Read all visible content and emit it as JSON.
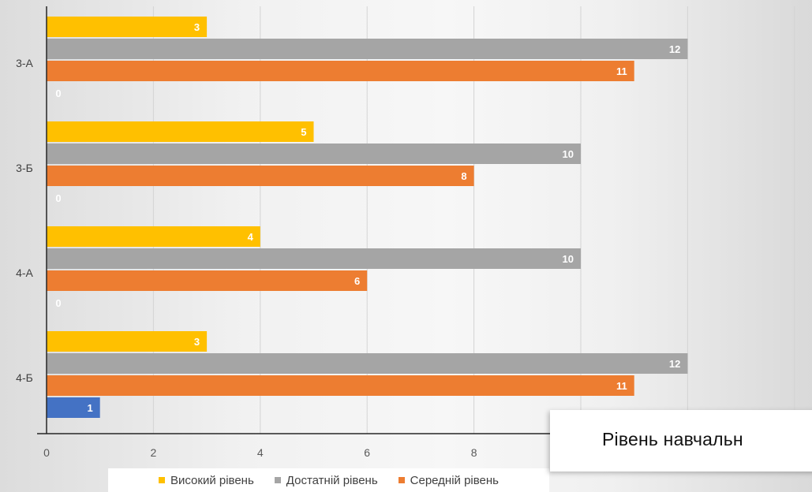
{
  "chart_data": {
    "type": "bar",
    "orientation": "horizontal",
    "title": "Рівень навчальн",
    "categories": [
      "3-А",
      "3-Б",
      "4-А",
      "4-Б"
    ],
    "series": [
      {
        "name": "Високий рівень",
        "color": "#FFC000",
        "values": [
          3,
          5,
          4,
          3
        ]
      },
      {
        "name": "Достатній рівень",
        "color": "#A5A5A5",
        "values": [
          12,
          10,
          10,
          12
        ]
      },
      {
        "name": "Середній рівень",
        "color": "#ED7D31",
        "values": [
          11,
          8,
          6,
          11
        ]
      },
      {
        "name": "",
        "color": "#4472C4",
        "values": [
          0,
          0,
          0,
          1
        ]
      }
    ],
    "xticks": [
      "0",
      "2",
      "4",
      "6",
      "8"
    ],
    "xlim": [
      0,
      14
    ],
    "grid": true,
    "legend": "bottom"
  }
}
